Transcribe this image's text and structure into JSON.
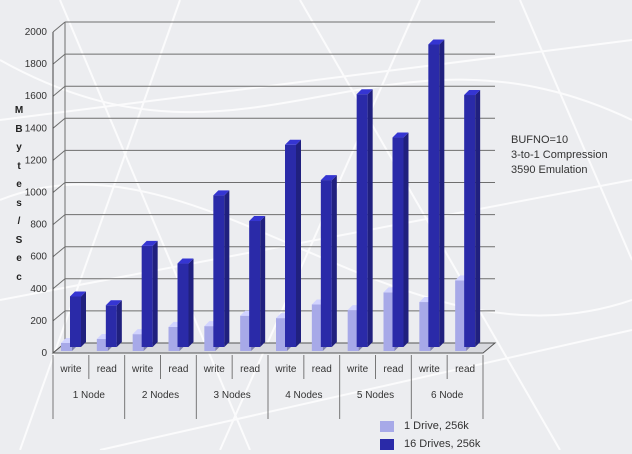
{
  "chart_data": {
    "type": "bar",
    "title": "",
    "xlabel": "",
    "ylabel": "MBytes/Sec",
    "ylabel_chars": [
      "M",
      "B",
      "y",
      "t",
      "e",
      "s",
      "/",
      "S",
      "e",
      "c"
    ],
    "ylim": [
      0,
      2000
    ],
    "yticks": [
      0,
      200,
      400,
      600,
      800,
      1000,
      1200,
      1400,
      1600,
      1800,
      2000
    ],
    "grid": true,
    "groups": [
      "1 Node",
      "2 Nodes",
      "3 Nodes",
      "4 Nodes",
      "5 Nodes",
      "6 Node"
    ],
    "categories": [
      "write",
      "read",
      "write",
      "read",
      "write",
      "read",
      "write",
      "read",
      "write",
      "read",
      "write",
      "read"
    ],
    "series": [
      {
        "name": "1 Drive, 256k",
        "color": "#a7a9e8",
        "values": [
          50,
          75,
          105,
          150,
          155,
          220,
          205,
          290,
          255,
          365,
          305,
          440
        ]
      },
      {
        "name": "16 Drives, 256k",
        "color": "#2a2aa8",
        "values": [
          315,
          260,
          630,
          520,
          945,
          785,
          1260,
          1040,
          1575,
          1305,
          1885,
          1570
        ]
      }
    ],
    "legend_position": "bottom-right",
    "annotations": [
      "BUFNO=10",
      "3-to-1 Compression",
      "3590 Emulation"
    ]
  }
}
